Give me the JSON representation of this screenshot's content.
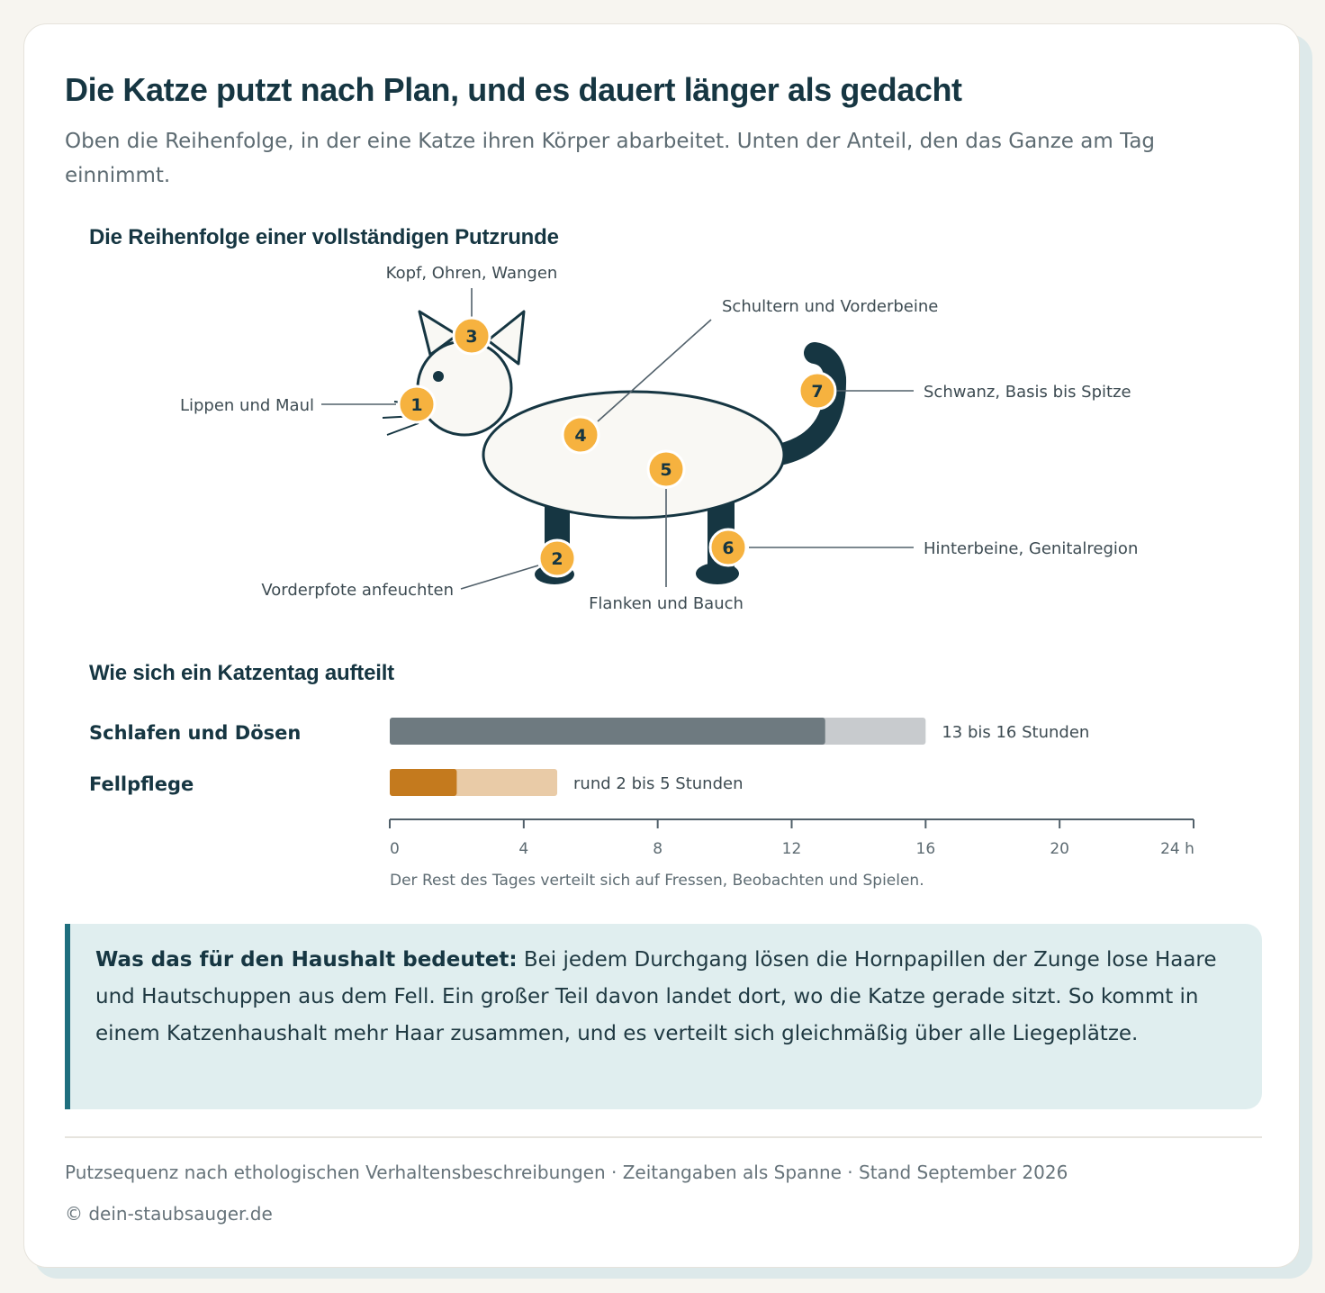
{
  "header": {
    "title": "Die Katze putzt nach Plan, und es dauert länger als gedacht",
    "subtitle": "Oben die Reihenfolge, in der eine Katze ihren Körper abarbeitet. Unten der Anteil, den das Ganze am Tag einnimmt."
  },
  "sequence": {
    "heading": "Die Reihenfolge einer vollständigen Putzrunde",
    "steps": [
      {
        "number": "1",
        "label": "Lippen und Maul"
      },
      {
        "number": "2",
        "label": "Vorderpfote anfeuchten"
      },
      {
        "number": "3",
        "label": "Kopf, Ohren, Wangen"
      },
      {
        "number": "4",
        "label": "Schultern und Vorderbeine"
      },
      {
        "number": "5",
        "label": "Flanken und Bauch"
      },
      {
        "number": "6",
        "label": "Hinterbeine, Genitalregion"
      },
      {
        "number": "7",
        "label": "Schwanz, Basis bis Spitze"
      }
    ]
  },
  "day": {
    "heading": "Wie sich ein Katzentag aufteilt",
    "note": "Der Rest des Tages verteilt sich auf Fressen, Beobachten und Spielen."
  },
  "chart_data": {
    "type": "bar",
    "orientation": "horizontal",
    "categories": [
      "Schlafen und Dösen",
      "Fellpflege"
    ],
    "ranges": [
      {
        "category": "Schlafen und Dösen",
        "min": 13,
        "max": 16,
        "label": "13 bis 16 Stunden"
      },
      {
        "category": "Fellpflege",
        "min": 2,
        "max": 5,
        "label": "rund 2 bis 5 Stunden"
      }
    ],
    "xlim": [
      0,
      24
    ],
    "ticks": [
      "0",
      "4",
      "8",
      "12",
      "16",
      "20",
      "24 h"
    ],
    "tick_values": [
      0,
      4,
      8,
      12,
      16,
      20,
      24
    ],
    "colors": {
      "Schlafen und Dösen": {
        "solid": "#6e7a80",
        "range": "#c8cbce"
      },
      "Fellpflege": {
        "solid": "#c47a1e",
        "range": "#e9cba7"
      }
    },
    "grid": false
  },
  "callout": {
    "lead": "Was das für den Haushalt bedeutet:",
    "text": " Bei jedem Durchgang lösen die Hornpapillen der Zunge lose Haare und Hautschuppen aus dem Fell. Ein großer Teil davon landet dort, wo die Katze gerade sitzt. So kommt in einem Katzenhaushalt mehr Haar zusammen, und es verteilt sich gleichmäßig über alle Liegeplätze."
  },
  "footer": {
    "source": "Putzsequenz nach ethologischen Verhaltensbeschreibungen · Zeitangaben als Spanne · Stand September 2026",
    "copyright": "© dein-staubsauger.de"
  },
  "colors": {
    "marker": "#f6b23f",
    "cat_outline": "#163642",
    "cat_fill": "#f9f8f4",
    "accent": "#1f6f7e"
  }
}
